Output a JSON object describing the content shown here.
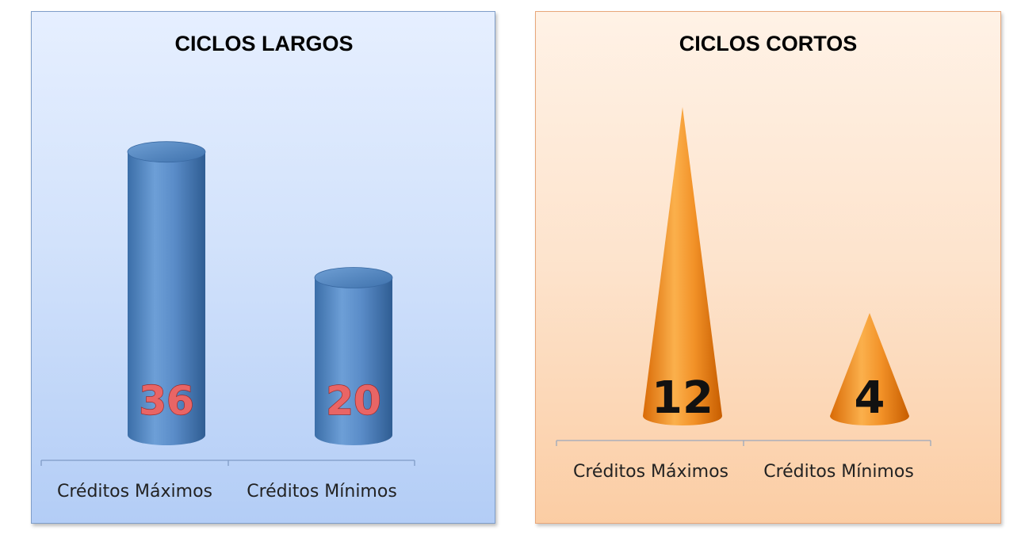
{
  "colors": {
    "cylinder": "#4f86c3",
    "cone": "#f08a1e",
    "axis_blue": "#7f9bc6",
    "axis_orange": "#9aa8bd"
  },
  "chart_data": [
    {
      "type": "bar",
      "shape": "cylinder",
      "title": "CICLOS LARGOS",
      "categories": [
        "Créditos Máximos",
        "Créditos Mínimos"
      ],
      "values": [
        36,
        20
      ],
      "value_labels": [
        "36",
        "20"
      ],
      "ylim": [
        0,
        40
      ],
      "grid": false,
      "legend": "none"
    },
    {
      "type": "bar",
      "shape": "cone",
      "title": "CICLOS CORTOS",
      "categories": [
        "Créditos Máximos",
        "Créditos Mínimos"
      ],
      "values": [
        12,
        4
      ],
      "value_labels": [
        "12",
        "4"
      ],
      "ylim": [
        0,
        12
      ],
      "grid": false,
      "legend": "none"
    }
  ]
}
